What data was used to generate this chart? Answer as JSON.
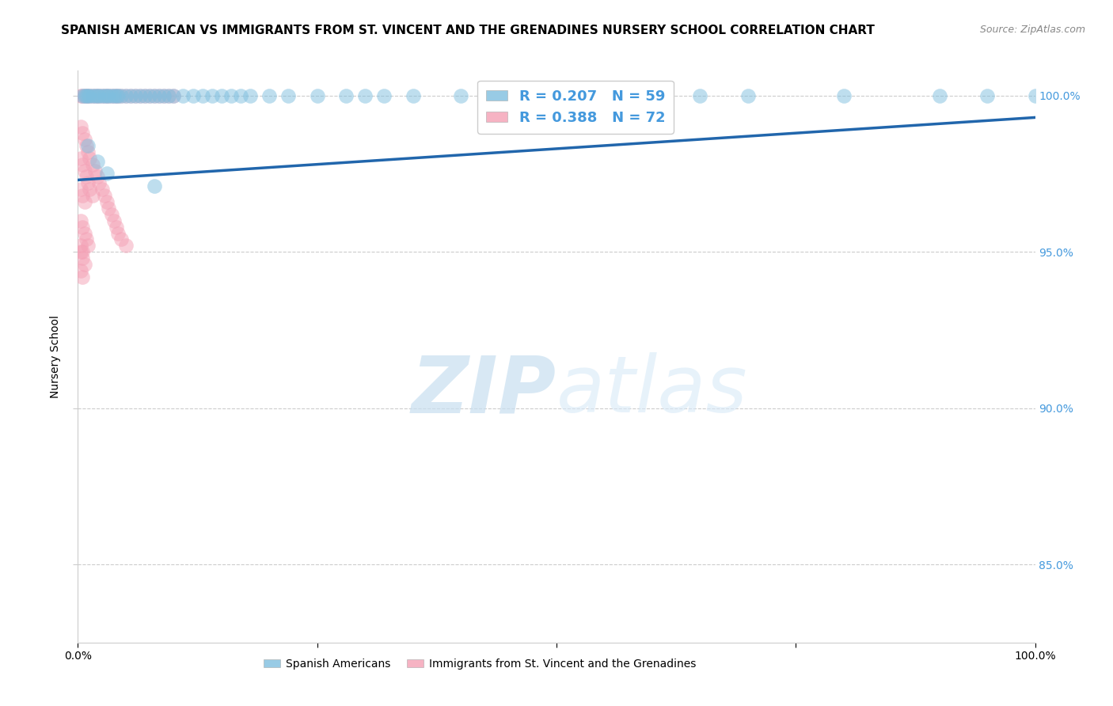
{
  "title": "SPANISH AMERICAN VS IMMIGRANTS FROM ST. VINCENT AND THE GRENADINES NURSERY SCHOOL CORRELATION CHART",
  "source": "Source: ZipAtlas.com",
  "ylabel": "Nursery School",
  "xlim": [
    0.0,
    1.0
  ],
  "ylim": [
    0.825,
    1.008
  ],
  "yticks": [
    0.85,
    0.9,
    0.95,
    1.0
  ],
  "ytick_labels": [
    "85.0%",
    "90.0%",
    "95.0%",
    "100.0%"
  ],
  "xticks": [
    0.0,
    0.25,
    0.5,
    0.75,
    1.0
  ],
  "xtick_labels": [
    "0.0%",
    "",
    "",
    "",
    "100.0%"
  ],
  "blue_color": "#7fbfdf",
  "pink_color": "#f4a0b5",
  "line_color": "#2166ac",
  "legend_R1": "R = 0.207",
  "legend_N1": "N = 59",
  "legend_R2": "R = 0.388",
  "legend_N2": "N = 72",
  "watermark_zip": "ZIP",
  "watermark_atlas": "atlas",
  "grid_color": "#cccccc",
  "bg_color": "#ffffff",
  "title_fontsize": 11,
  "axis_label_fontsize": 10,
  "tick_fontsize": 10,
  "right_tick_color": "#4499dd",
  "blue_scatter_x": [
    0.005,
    0.007,
    0.009,
    0.01,
    0.012,
    0.015,
    0.018,
    0.02,
    0.022,
    0.025,
    0.028,
    0.03,
    0.032,
    0.035,
    0.038,
    0.04,
    0.042,
    0.045,
    0.05,
    0.055,
    0.06,
    0.065,
    0.07,
    0.075,
    0.08,
    0.085,
    0.09,
    0.095,
    0.1,
    0.11,
    0.12,
    0.13,
    0.14,
    0.15,
    0.16,
    0.17,
    0.18,
    0.2,
    0.22,
    0.25,
    0.28,
    0.3,
    0.32,
    0.35,
    0.4,
    0.45,
    0.5,
    0.55,
    0.6,
    0.65,
    0.7,
    0.8,
    0.9,
    0.95,
    1.0,
    0.01,
    0.02,
    0.03,
    0.08
  ],
  "blue_scatter_y": [
    1.0,
    1.0,
    1.0,
    1.0,
    1.0,
    1.0,
    1.0,
    1.0,
    1.0,
    1.0,
    1.0,
    1.0,
    1.0,
    1.0,
    1.0,
    1.0,
    1.0,
    1.0,
    1.0,
    1.0,
    1.0,
    1.0,
    1.0,
    1.0,
    1.0,
    1.0,
    1.0,
    1.0,
    1.0,
    1.0,
    1.0,
    1.0,
    1.0,
    1.0,
    1.0,
    1.0,
    1.0,
    1.0,
    1.0,
    1.0,
    1.0,
    1.0,
    1.0,
    1.0,
    1.0,
    1.0,
    1.0,
    1.0,
    1.0,
    1.0,
    1.0,
    1.0,
    1.0,
    1.0,
    1.0,
    0.984,
    0.979,
    0.975,
    0.971
  ],
  "pink_scatter_x": [
    0.003,
    0.005,
    0.007,
    0.009,
    0.01,
    0.012,
    0.015,
    0.018,
    0.02,
    0.022,
    0.025,
    0.028,
    0.03,
    0.032,
    0.035,
    0.038,
    0.04,
    0.042,
    0.045,
    0.05,
    0.055,
    0.06,
    0.065,
    0.07,
    0.075,
    0.08,
    0.085,
    0.09,
    0.095,
    0.1,
    0.003,
    0.005,
    0.007,
    0.009,
    0.01,
    0.012,
    0.015,
    0.018,
    0.02,
    0.022,
    0.025,
    0.028,
    0.03,
    0.032,
    0.035,
    0.038,
    0.04,
    0.042,
    0.045,
    0.05,
    0.003,
    0.005,
    0.007,
    0.009,
    0.01,
    0.012,
    0.015,
    0.003,
    0.005,
    0.007,
    0.003,
    0.005,
    0.007,
    0.009,
    0.01,
    0.003,
    0.005,
    0.007,
    0.003,
    0.005,
    0.003,
    0.005
  ],
  "pink_scatter_y": [
    1.0,
    1.0,
    1.0,
    1.0,
    1.0,
    1.0,
    1.0,
    1.0,
    1.0,
    1.0,
    1.0,
    1.0,
    1.0,
    1.0,
    1.0,
    1.0,
    1.0,
    1.0,
    1.0,
    1.0,
    1.0,
    1.0,
    1.0,
    1.0,
    1.0,
    1.0,
    1.0,
    1.0,
    1.0,
    1.0,
    0.99,
    0.988,
    0.986,
    0.984,
    0.982,
    0.98,
    0.978,
    0.976,
    0.974,
    0.972,
    0.97,
    0.968,
    0.966,
    0.964,
    0.962,
    0.96,
    0.958,
    0.956,
    0.954,
    0.952,
    0.98,
    0.978,
    0.976,
    0.974,
    0.972,
    0.97,
    0.968,
    0.97,
    0.968,
    0.966,
    0.96,
    0.958,
    0.956,
    0.954,
    0.952,
    0.95,
    0.948,
    0.946,
    0.944,
    0.942,
    0.952,
    0.95
  ],
  "trend_x": [
    0.0,
    1.0
  ],
  "trend_y": [
    0.973,
    0.993
  ]
}
